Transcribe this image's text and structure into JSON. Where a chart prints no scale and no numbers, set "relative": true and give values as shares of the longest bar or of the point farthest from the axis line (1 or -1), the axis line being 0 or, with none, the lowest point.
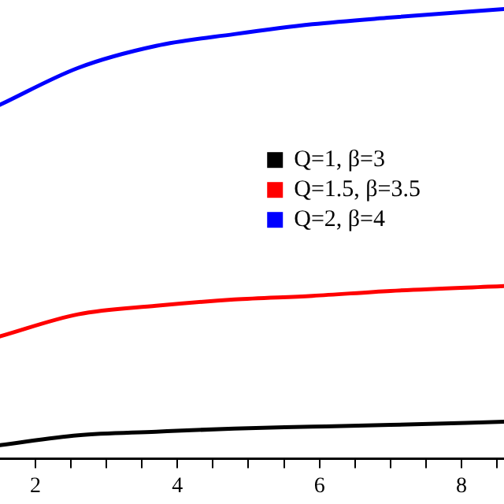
{
  "chart_data": {
    "type": "line",
    "relative": true,
    "x": [
      1.5,
      2.6,
      3.7,
      4.8,
      5.9,
      7.0,
      8.6
    ],
    "xlim": [
      1.5,
      8.6
    ],
    "xticks": [
      2,
      {
        "value": 2.5,
        "label": null
      },
      {
        "value": 3,
        "label": null
      },
      {
        "value": 3.5,
        "label": null
      },
      4,
      {
        "value": 4.5,
        "label": null
      },
      {
        "value": 5,
        "label": null
      },
      {
        "value": 5.5,
        "label": null
      },
      6,
      {
        "value": 6.5,
        "label": null
      },
      {
        "value": 7,
        "label": null
      },
      {
        "value": 7.5,
        "label": null
      },
      8,
      {
        "value": 8.5,
        "label": null
      }
    ],
    "series": [
      {
        "name": "Q=1, β=3",
        "color": "#000000",
        "values": [
          0.03,
          0.052,
          0.06,
          0.067,
          0.071,
          0.075,
          0.082
        ]
      },
      {
        "name": "Q=1.5, β=3.5",
        "color": "#ff0000",
        "values": [
          0.272,
          0.321,
          0.34,
          0.354,
          0.362,
          0.373,
          0.384
        ]
      },
      {
        "name": "Q=2, β=4",
        "color": "#0000ff",
        "values": [
          0.787,
          0.869,
          0.918,
          0.944,
          0.966,
          0.981,
          1
        ]
      }
    ],
    "legend": "right",
    "grid": false,
    "marker": "none",
    "line_style": "solid"
  }
}
